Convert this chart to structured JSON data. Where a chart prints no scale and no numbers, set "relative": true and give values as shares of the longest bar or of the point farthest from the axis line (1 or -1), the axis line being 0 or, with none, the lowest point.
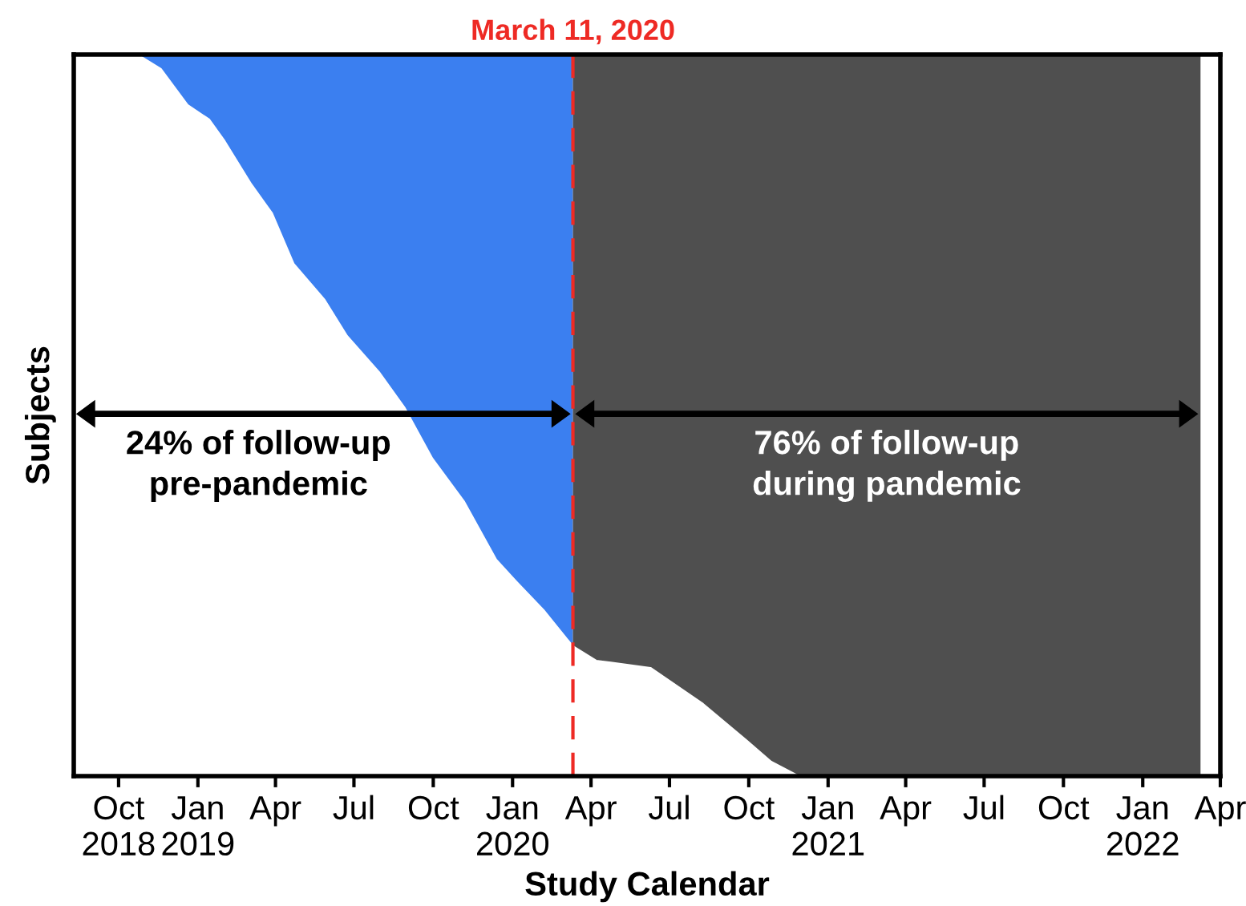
{
  "chart_data": {
    "type": "area",
    "relative": true,
    "xlabel": "Study Calendar",
    "ylabel": "Subjects",
    "x": [
      "2018-08-30",
      "2018-10-23",
      "2018-11-19",
      "2018-12-20",
      "2019-01-14",
      "2019-02-01",
      "2019-03-04",
      "2019-03-28",
      "2019-04-22",
      "2019-05-28",
      "2019-06-23",
      "2019-07-30",
      "2019-08-29",
      "2019-09-30",
      "2019-11-06",
      "2019-12-13",
      "2020-01-05",
      "2020-02-06",
      "2020-03-04",
      "2020-03-11",
      "2020-04-07",
      "2020-06-09",
      "2020-08-09",
      "2020-09-28",
      "2020-10-27",
      "2020-11-28",
      "2022-03-09"
    ],
    "series": [
      {
        "color": "#ffffff",
        "values": [
          1,
          1,
          0.98,
          0.93,
          0.91,
          0.88,
          0.82,
          0.78,
          0.71,
          0.66,
          0.61,
          0.56,
          0.51,
          0.44,
          0.38,
          0.3,
          0.27,
          0.23,
          0.19,
          0.18,
          0.16,
          0.15,
          0.1,
          0.05,
          0.02,
          0,
          0
        ]
      }
    ],
    "bands": [
      {
        "axis": "x",
        "from": "2018-08-30",
        "to": "2020-03-11",
        "color": "#3b7ff0"
      },
      {
        "axis": "x",
        "from": "2020-03-11",
        "to": "2022-03-09",
        "color": "#4f4f4f"
      }
    ],
    "xlim": [
      "2018-08-10",
      "2022-04-01"
    ],
    "xticks": [
      {
        "value": "2018-10-01",
        "label": "Oct\n2018"
      },
      {
        "value": "2019-01-01",
        "label": "Jan\n2019"
      },
      {
        "value": "2019-04-01",
        "label": "Apr"
      },
      {
        "value": "2019-07-01",
        "label": "Jul"
      },
      {
        "value": "2019-10-01",
        "label": "Oct"
      },
      {
        "value": "2020-01-01",
        "label": "Jan\n2020"
      },
      {
        "value": "2020-04-01",
        "label": "Apr"
      },
      {
        "value": "2020-07-01",
        "label": "Jul"
      },
      {
        "value": "2020-10-01",
        "label": "Oct"
      },
      {
        "value": "2021-01-01",
        "label": "Jan\n2021"
      },
      {
        "value": "2021-04-01",
        "label": "Apr"
      },
      {
        "value": "2021-07-01",
        "label": "Jul"
      },
      {
        "value": "2021-10-01",
        "label": "Oct"
      },
      {
        "value": "2022-01-01",
        "label": "Jan\n2022"
      },
      {
        "value": "2022-04-01",
        "label": "Apr"
      }
    ],
    "ref_lines": [
      {
        "axis": "x",
        "value": "2020-03-11",
        "label": "March 11, 2020",
        "color": "#ee2a24",
        "line_style": "dashed"
      }
    ],
    "annotations": [
      "24% of follow-up\npre-pandemic",
      "76% of follow-up\nduring pandemic"
    ]
  }
}
